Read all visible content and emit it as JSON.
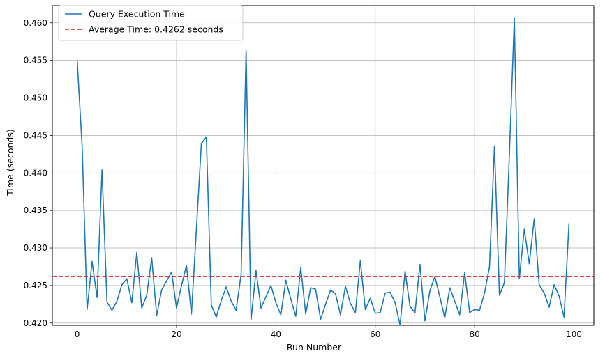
{
  "chart_data": {
    "type": "line",
    "title": "",
    "xlabel": "Run Number",
    "ylabel": "Time (seconds)",
    "xlim": [
      -5,
      104
    ],
    "ylim": [
      0.4197,
      0.4623
    ],
    "xticks": [
      0,
      20,
      40,
      60,
      80,
      100
    ],
    "yticks": [
      0.42,
      0.425,
      0.43,
      0.435,
      0.44,
      0.445,
      0.45,
      0.455,
      0.46
    ],
    "xtick_labels": [
      "0",
      "20",
      "40",
      "60",
      "80",
      "100"
    ],
    "ytick_labels": [
      "0.420",
      "0.425",
      "0.430",
      "0.435",
      "0.440",
      "0.445",
      "0.450",
      "0.455",
      "0.460"
    ],
    "grid": true,
    "legend_placement": "top-left",
    "series": [
      {
        "name": "Query Execution Time",
        "color": "#1f77b4",
        "style": "solid",
        "x": [
          0,
          1,
          2,
          3,
          4,
          5,
          6,
          7,
          8,
          9,
          10,
          11,
          12,
          13,
          14,
          15,
          16,
          17,
          18,
          19,
          20,
          21,
          22,
          23,
          24,
          25,
          26,
          27,
          28,
          29,
          30,
          31,
          32,
          33,
          34,
          35,
          36,
          37,
          38,
          39,
          40,
          41,
          42,
          43,
          44,
          45,
          46,
          47,
          48,
          49,
          50,
          51,
          52,
          53,
          54,
          55,
          56,
          57,
          58,
          59,
          60,
          61,
          62,
          63,
          64,
          65,
          66,
          67,
          68,
          69,
          70,
          71,
          72,
          73,
          74,
          75,
          76,
          77,
          78,
          79,
          80,
          81,
          82,
          83,
          84,
          85,
          86,
          87,
          88,
          89,
          90,
          91,
          92,
          93,
          94,
          95,
          96,
          97,
          98,
          99
        ],
        "values": [
          0.455,
          0.4435,
          0.4218,
          0.4282,
          0.4234,
          0.4404,
          0.4228,
          0.4217,
          0.4229,
          0.4251,
          0.4259,
          0.4227,
          0.4294,
          0.422,
          0.4237,
          0.4287,
          0.421,
          0.4244,
          0.4256,
          0.4268,
          0.422,
          0.425,
          0.4277,
          0.4212,
          0.4325,
          0.4439,
          0.4448,
          0.4224,
          0.4208,
          0.423,
          0.4248,
          0.4229,
          0.4217,
          0.4265,
          0.4563,
          0.4204,
          0.427,
          0.422,
          0.4235,
          0.425,
          0.4227,
          0.4211,
          0.4257,
          0.4232,
          0.4209,
          0.4274,
          0.4212,
          0.4247,
          0.4245,
          0.4205,
          0.4225,
          0.4244,
          0.4239,
          0.4211,
          0.4249,
          0.4226,
          0.4214,
          0.4283,
          0.4218,
          0.4233,
          0.4213,
          0.4214,
          0.424,
          0.4241,
          0.4227,
          0.4197,
          0.4269,
          0.4222,
          0.4214,
          0.4278,
          0.4203,
          0.4243,
          0.4262,
          0.4235,
          0.4207,
          0.4247,
          0.4229,
          0.4211,
          0.4267,
          0.4214,
          0.4218,
          0.4217,
          0.424,
          0.4275,
          0.4436,
          0.4237,
          0.4254,
          0.4424,
          0.4606,
          0.4259,
          0.4325,
          0.4279,
          0.4339,
          0.4251,
          0.424,
          0.4221,
          0.4251,
          0.4236,
          0.4208,
          0.4333
        ]
      },
      {
        "name": "Average Time: 0.4262 seconds",
        "color": "#d62728",
        "style": "dashed",
        "constant": 0.4262
      }
    ]
  }
}
